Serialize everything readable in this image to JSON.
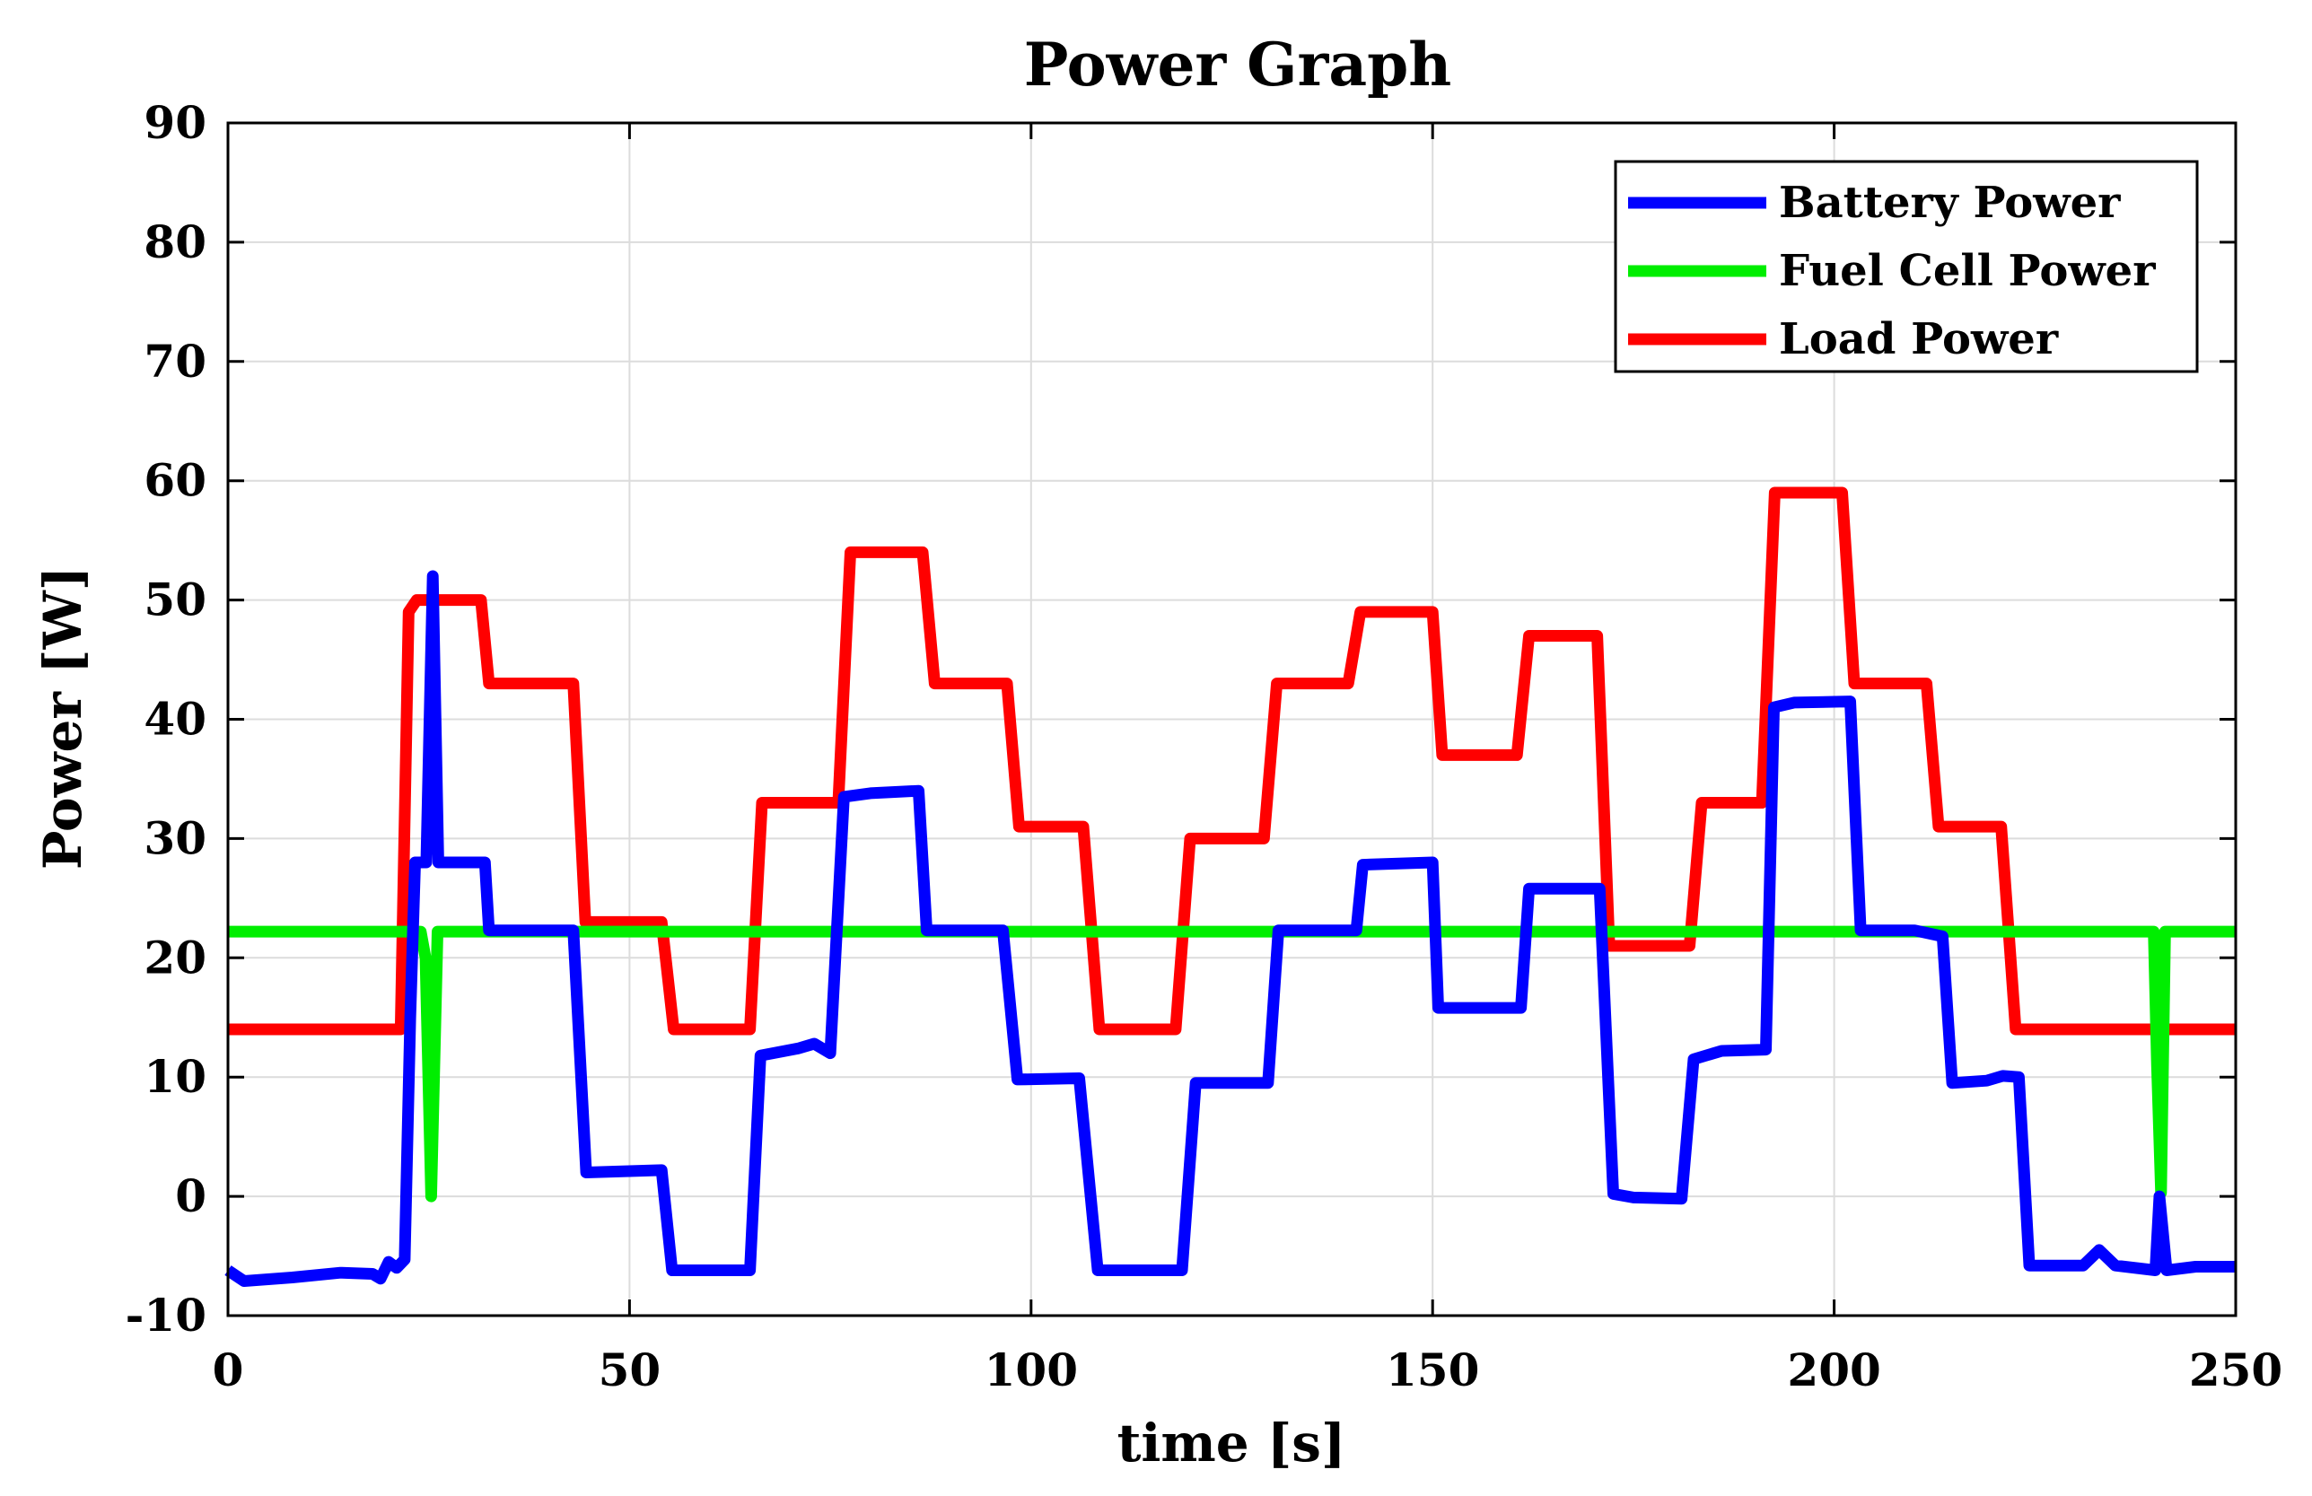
{
  "chart_data": {
    "type": "line",
    "title": "Power Graph",
    "xlabel": "time [s]",
    "ylabel": "Power [W]",
    "xlim": [
      0,
      250
    ],
    "ylim": [
      -10,
      90
    ],
    "xticks": [
      0,
      50,
      100,
      150,
      200,
      250
    ],
    "yticks": [
      -10,
      0,
      10,
      20,
      30,
      40,
      50,
      60,
      70,
      80,
      90
    ],
    "grid": true,
    "legend_position": "top-right",
    "series": [
      {
        "name": "Battery Power",
        "color": "#0000ff",
        "points": [
          [
            0,
            -6.2
          ],
          [
            2,
            -7.1
          ],
          [
            8,
            -6.8
          ],
          [
            14,
            -6.4
          ],
          [
            18,
            -6.5
          ],
          [
            19,
            -6.9
          ],
          [
            20,
            -5.5
          ],
          [
            21,
            -6
          ],
          [
            22,
            -5.3
          ],
          [
            22.7,
            15
          ],
          [
            23.3,
            28
          ],
          [
            24.7,
            28
          ],
          [
            25.5,
            52
          ],
          [
            26.2,
            28
          ],
          [
            32,
            28
          ],
          [
            32.5,
            22.3
          ],
          [
            43,
            22.3
          ],
          [
            44.6,
            2
          ],
          [
            54,
            2.2
          ],
          [
            55.3,
            -6.2
          ],
          [
            65,
            -6.2
          ],
          [
            66.3,
            11.8
          ],
          [
            71,
            12.4
          ],
          [
            73,
            12.8
          ],
          [
            75,
            12
          ],
          [
            76.7,
            33.5
          ],
          [
            80,
            33.8
          ],
          [
            86,
            34
          ],
          [
            87,
            22.3
          ],
          [
            96.5,
            22.3
          ],
          [
            98.3,
            9.8
          ],
          [
            106,
            9.9
          ],
          [
            108.3,
            -6.2
          ],
          [
            118.8,
            -6.2
          ],
          [
            120.5,
            9.5
          ],
          [
            129.5,
            9.5
          ],
          [
            130.8,
            22.3
          ],
          [
            140.5,
            22.3
          ],
          [
            141.3,
            27.8
          ],
          [
            150,
            28
          ],
          [
            150.7,
            15.8
          ],
          [
            161,
            15.8
          ],
          [
            162,
            25.8
          ],
          [
            170.8,
            25.8
          ],
          [
            172.5,
            0.2
          ],
          [
            175,
            -0.1
          ],
          [
            181,
            -0.2
          ],
          [
            182.5,
            11.5
          ],
          [
            186,
            12.2
          ],
          [
            191.5,
            12.3
          ],
          [
            192.5,
            41
          ],
          [
            195,
            41.4
          ],
          [
            202,
            41.5
          ],
          [
            203.3,
            22.3
          ],
          [
            210,
            22.3
          ],
          [
            213.5,
            21.8
          ],
          [
            214.7,
            9.5
          ],
          [
            219,
            9.7
          ],
          [
            221,
            10.1
          ],
          [
            223,
            10
          ],
          [
            224.3,
            -5.8
          ],
          [
            231,
            -5.8
          ],
          [
            233,
            -4.5
          ],
          [
            235,
            -5.8
          ],
          [
            240,
            -6.2
          ],
          [
            240.5,
            0
          ],
          [
            241.4,
            -6.2
          ],
          [
            245,
            -5.9
          ],
          [
            250,
            -5.9
          ]
        ]
      },
      {
        "name": "Fuel Cell Power",
        "color": "#00ee00",
        "points": [
          [
            0,
            22.2
          ],
          [
            24,
            22.2
          ],
          [
            24.6,
            20
          ],
          [
            25.3,
            0
          ],
          [
            26.1,
            22.2
          ],
          [
            239.8,
            22.2
          ],
          [
            240.2,
            11
          ],
          [
            240.7,
            0.3
          ],
          [
            241.2,
            22.2
          ],
          [
            250,
            22.2
          ]
        ]
      },
      {
        "name": "Load Power",
        "color": "#ff0000",
        "points": [
          [
            0,
            14
          ],
          [
            21.5,
            14
          ],
          [
            22.5,
            49
          ],
          [
            23.5,
            50
          ],
          [
            31.5,
            50
          ],
          [
            32.5,
            43
          ],
          [
            43,
            43
          ],
          [
            44.5,
            23
          ],
          [
            54,
            23
          ],
          [
            55.5,
            14
          ],
          [
            65,
            14
          ],
          [
            66.5,
            33
          ],
          [
            76,
            33
          ],
          [
            77.5,
            54
          ],
          [
            86.5,
            54
          ],
          [
            88,
            43
          ],
          [
            97,
            43
          ],
          [
            98.5,
            31
          ],
          [
            106.5,
            31
          ],
          [
            108.5,
            14
          ],
          [
            118,
            14
          ],
          [
            119.8,
            30
          ],
          [
            129,
            30
          ],
          [
            130.6,
            43
          ],
          [
            139.5,
            43
          ],
          [
            141,
            49
          ],
          [
            150,
            49
          ],
          [
            151.2,
            37
          ],
          [
            160.5,
            37
          ],
          [
            162,
            47
          ],
          [
            170.5,
            47
          ],
          [
            172,
            21
          ],
          [
            182,
            21
          ],
          [
            183.5,
            33
          ],
          [
            191,
            33
          ],
          [
            192.6,
            59
          ],
          [
            201,
            59
          ],
          [
            202.5,
            43
          ],
          [
            211.5,
            43
          ],
          [
            213,
            31
          ],
          [
            220.8,
            31
          ],
          [
            222.6,
            14
          ],
          [
            250,
            14
          ]
        ]
      }
    ]
  }
}
